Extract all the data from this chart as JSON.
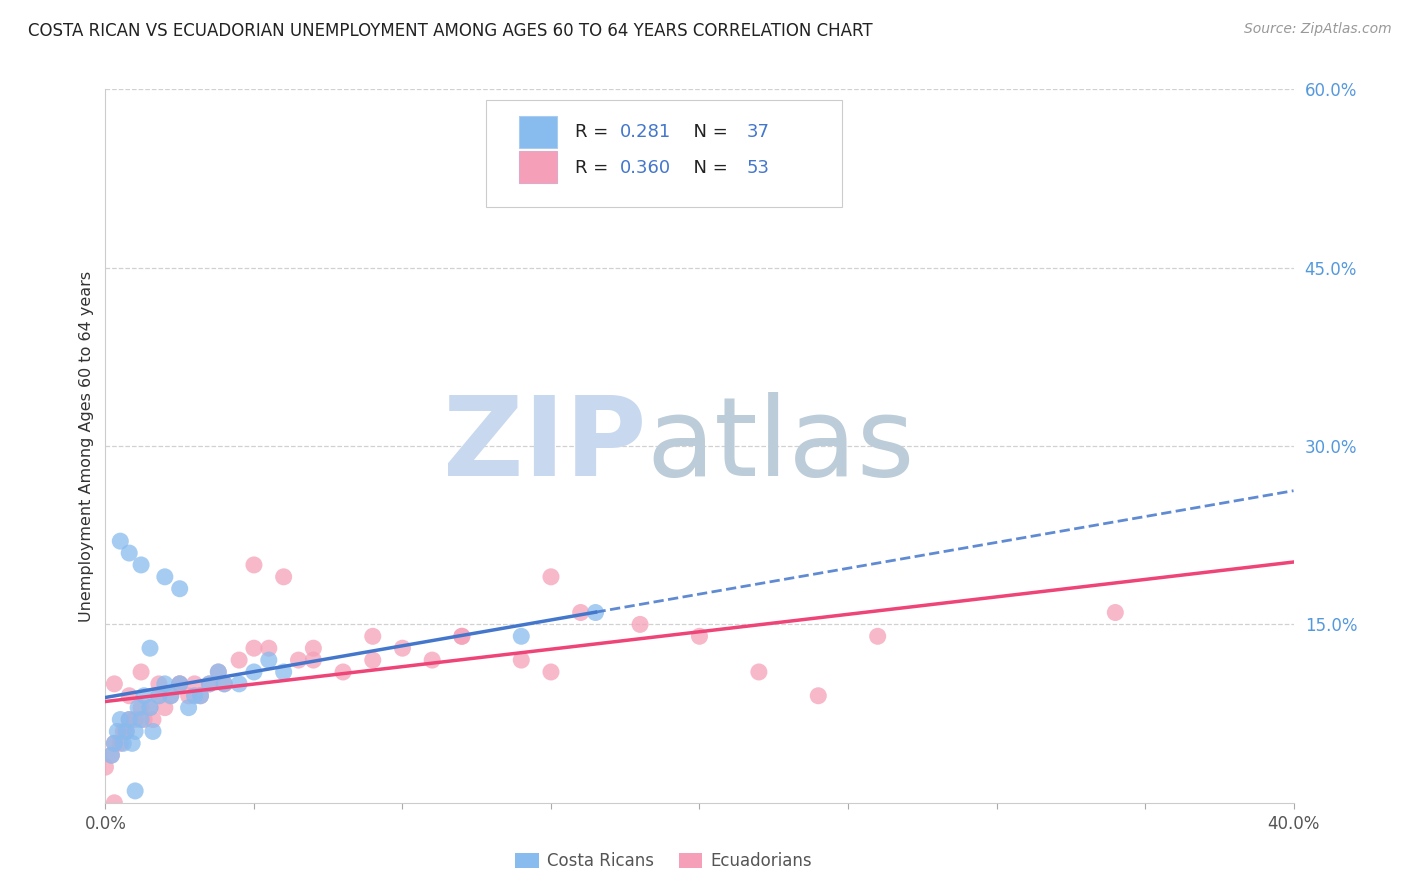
{
  "title": "COSTA RICAN VS ECUADORIAN UNEMPLOYMENT AMONG AGES 60 TO 64 YEARS CORRELATION CHART",
  "source": "Source: ZipAtlas.com",
  "ylabel": "Unemployment Among Ages 60 to 64 years",
  "xlim": [
    0.0,
    0.4
  ],
  "ylim": [
    0.0,
    0.6
  ],
  "x_ticks": [
    0.0,
    0.05,
    0.1,
    0.15,
    0.2,
    0.25,
    0.3,
    0.35,
    0.4
  ],
  "x_tick_labels": [
    "0.0%",
    "",
    "",
    "",
    "",
    "",
    "",
    "",
    "40.0%"
  ],
  "y_ticks_right": [
    0.0,
    0.15,
    0.3,
    0.45,
    0.6
  ],
  "y_tick_labels_right": [
    "",
    "15.0%",
    "30.0%",
    "45.0%",
    "60.0%"
  ],
  "grid_color": "#cccccc",
  "background_color": "#ffffff",
  "legend_R1": "0.281",
  "legend_N1": "37",
  "legend_R2": "0.360",
  "legend_N2": "53",
  "costa_rican_color": "#88bbee",
  "ecuadorian_color": "#f5a0b8",
  "regression_color_cr": "#4477cc",
  "regression_color_ec": "#ee4477",
  "label_color": "#222222",
  "value_color": "#4477cc",
  "right_axis_color": "#5599dd",
  "cr_x": [
    0.002,
    0.003,
    0.004,
    0.005,
    0.006,
    0.007,
    0.008,
    0.009,
    0.01,
    0.011,
    0.012,
    0.013,
    0.015,
    0.016,
    0.018,
    0.02,
    0.022,
    0.025,
    0.028,
    0.03,
    0.032,
    0.035,
    0.038,
    0.04,
    0.045,
    0.05,
    0.055,
    0.06,
    0.005,
    0.008,
    0.012,
    0.02,
    0.025,
    0.14,
    0.165,
    0.015,
    0.01
  ],
  "cr_y": [
    0.04,
    0.05,
    0.06,
    0.07,
    0.05,
    0.06,
    0.07,
    0.05,
    0.06,
    0.08,
    0.07,
    0.09,
    0.08,
    0.06,
    0.09,
    0.1,
    0.09,
    0.1,
    0.08,
    0.09,
    0.09,
    0.1,
    0.11,
    0.1,
    0.1,
    0.11,
    0.12,
    0.11,
    0.22,
    0.21,
    0.2,
    0.19,
    0.18,
    0.14,
    0.16,
    0.13,
    0.01
  ],
  "ec_x": [
    0.0,
    0.002,
    0.003,
    0.005,
    0.006,
    0.007,
    0.008,
    0.01,
    0.012,
    0.013,
    0.015,
    0.016,
    0.018,
    0.02,
    0.022,
    0.025,
    0.028,
    0.03,
    0.032,
    0.035,
    0.038,
    0.04,
    0.045,
    0.05,
    0.055,
    0.06,
    0.065,
    0.07,
    0.08,
    0.09,
    0.1,
    0.11,
    0.12,
    0.14,
    0.15,
    0.16,
    0.18,
    0.2,
    0.22,
    0.24,
    0.26,
    0.05,
    0.07,
    0.09,
    0.12,
    0.15,
    0.003,
    0.008,
    0.012,
    0.018,
    0.025,
    0.003,
    0.34
  ],
  "ec_y": [
    0.03,
    0.04,
    0.05,
    0.05,
    0.06,
    0.06,
    0.07,
    0.07,
    0.08,
    0.07,
    0.08,
    0.07,
    0.09,
    0.08,
    0.09,
    0.1,
    0.09,
    0.1,
    0.09,
    0.1,
    0.11,
    0.1,
    0.12,
    0.2,
    0.13,
    0.19,
    0.12,
    0.13,
    0.11,
    0.12,
    0.13,
    0.12,
    0.14,
    0.12,
    0.19,
    0.16,
    0.15,
    0.14,
    0.11,
    0.09,
    0.14,
    0.13,
    0.12,
    0.14,
    0.14,
    0.11,
    0.1,
    0.09,
    0.11,
    0.1,
    0.1,
    0.0,
    0.16
  ]
}
